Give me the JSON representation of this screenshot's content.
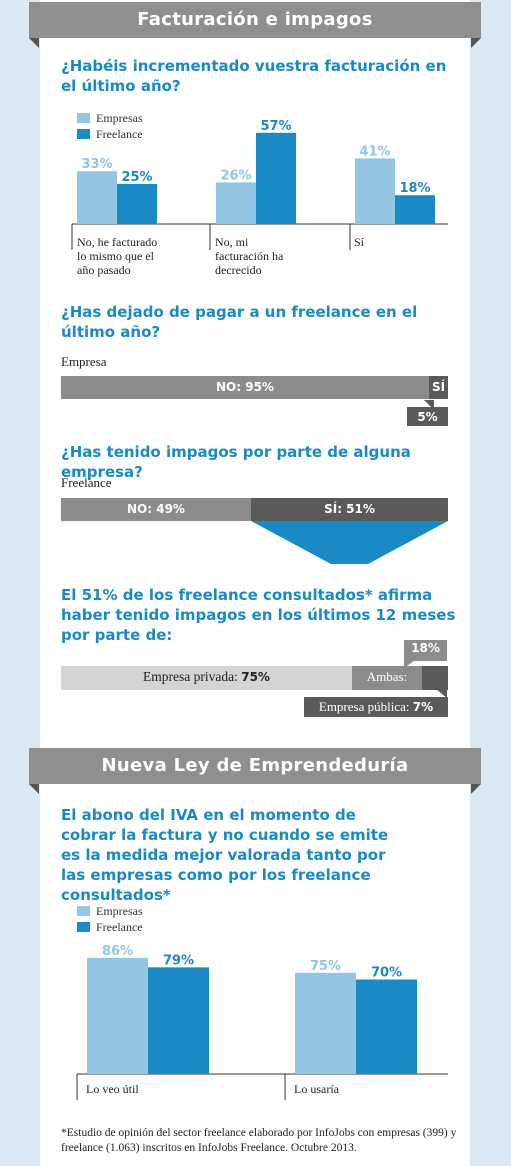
{
  "section1": {
    "title": "Facturación e impagos"
  },
  "q1": {
    "text": "¿Habéis incrementado vuestra facturación en el último año?"
  },
  "legend": {
    "empresas": "Empresas",
    "freelance": "Freelance"
  },
  "colors": {
    "empresas": "#93c6e2",
    "freelance": "#1a8ac6",
    "gray": "#8c8c8c",
    "darkgray": "#5a5a5a",
    "lightgray": "#d4d4d4",
    "accent": "#1a8ac6"
  },
  "q2": {
    "text": "¿Has dejado de pagar a un freelance en el último año?",
    "group": "Empresa",
    "no_label": "NO: 95%",
    "si_label": "SÍ",
    "si_value_label": "5%"
  },
  "q3": {
    "text": "¿Has tenido impagos por parte de alguna empresa?",
    "group": "Freelance",
    "no_label": "NO: 49%",
    "si_label": "SÍ: 51%"
  },
  "q4": {
    "text": "El 51% de los freelance consultados* afirma haber tenido impagos en los últimos 12 meses por parte de:",
    "privada_label": "Empresa privada: ",
    "privada_value": "75%",
    "ambas_label": "Ambas:",
    "ambas_value": "18%",
    "publica_label": "Empresa pública: ",
    "publica_value": "7%"
  },
  "section2": {
    "title": "Nueva Ley de Emprendeduría"
  },
  "q5": {
    "text": "El abono del IVA en el momento de cobrar la factura y no cuando se emite es la medida mejor valorada tanto por las empresas como por los freelance consultados*"
  },
  "footnote": "*Estudio de opinión del sector freelance elaborado por InfoJobs con empresas (399) y freelance (1.063) inscritos en InfoJobs Freelance. Octubre 2013.",
  "chart_data": [
    {
      "type": "bar",
      "title": "¿Habéis incrementado vuestra facturación en el último año?",
      "categories": [
        "No, he facturado lo mismo que el año pasado",
        "No, mi facturación ha decrecido",
        "Sí"
      ],
      "series": [
        {
          "name": "Empresas",
          "values": [
            33,
            26,
            41
          ],
          "labels": [
            "33%",
            "26%",
            "41%"
          ]
        },
        {
          "name": "Freelance",
          "values": [
            25,
            57,
            18
          ],
          "labels": [
            "25%",
            "57%",
            "18%"
          ]
        }
      ],
      "ylim": [
        0,
        60
      ],
      "grid": false,
      "legend": "top-left"
    },
    {
      "type": "bar",
      "title": "¿Has dejado de pagar a un freelance en el último año?",
      "categories": [
        "Empresa"
      ],
      "series": [
        {
          "name": "NO",
          "values": [
            95
          ]
        },
        {
          "name": "SÍ",
          "values": [
            5
          ]
        }
      ]
    },
    {
      "type": "bar",
      "title": "¿Has tenido impagos por parte de alguna empresa?",
      "categories": [
        "Freelance"
      ],
      "series": [
        {
          "name": "NO",
          "values": [
            49
          ]
        },
        {
          "name": "SÍ",
          "values": [
            51
          ]
        }
      ]
    },
    {
      "type": "bar",
      "categories": [
        "Empresa privada",
        "Ambas",
        "Empresa pública"
      ],
      "values": [
        75,
        18,
        7
      ]
    },
    {
      "type": "bar",
      "categories": [
        "Lo veo útil",
        "Lo usaría"
      ],
      "series": [
        {
          "name": "Empresas",
          "values": [
            86,
            75
          ],
          "labels": [
            "86%",
            "75%"
          ]
        },
        {
          "name": "Freelance",
          "values": [
            79,
            70
          ],
          "labels": [
            "79%",
            "70%"
          ]
        }
      ],
      "ylim": [
        0,
        100
      ],
      "grid": false,
      "legend": "top-left"
    }
  ]
}
